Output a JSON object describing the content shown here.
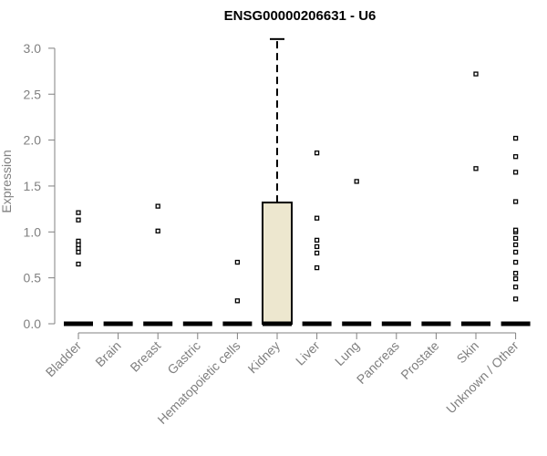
{
  "chart_data": {
    "type": "box",
    "title": "ENSG00000206631 - U6",
    "ylabel": "Expression",
    "xlabel": "",
    "ylim": [
      0,
      3.1
    ],
    "yticks": [
      "0.0",
      "0.5",
      "1.0",
      "1.5",
      "2.0",
      "2.5",
      "3.0"
    ],
    "categories": [
      "Bladder",
      "Brain",
      "Breast",
      "Gastric",
      "Hematopoietic cells",
      "Kidney",
      "Liver",
      "Lung",
      "Pancreas",
      "Prostate",
      "Skin",
      "Unknown / Other"
    ],
    "boxes": [
      {
        "category": "Bladder",
        "min": 0,
        "q1": 0,
        "median": 0,
        "q3": 0,
        "max": 0,
        "outliers": [
          0.65,
          0.78,
          0.82,
          0.86,
          0.9,
          1.13,
          1.21
        ]
      },
      {
        "category": "Brain",
        "min": 0,
        "q1": 0,
        "median": 0,
        "q3": 0,
        "max": 0,
        "outliers": []
      },
      {
        "category": "Breast",
        "min": 0,
        "q1": 0,
        "median": 0,
        "q3": 0,
        "max": 0,
        "outliers": [
          1.01,
          1.28
        ]
      },
      {
        "category": "Gastric",
        "min": 0,
        "q1": 0,
        "median": 0,
        "q3": 0,
        "max": 0,
        "outliers": []
      },
      {
        "category": "Hematopoietic cells",
        "min": 0,
        "q1": 0,
        "median": 0,
        "q3": 0,
        "max": 0,
        "outliers": [
          0.25,
          0.67
        ]
      },
      {
        "category": "Kidney",
        "min": 0,
        "q1": 0,
        "median": 0,
        "q3": 1.32,
        "max": 3.1,
        "outliers": []
      },
      {
        "category": "Liver",
        "min": 0,
        "q1": 0,
        "median": 0,
        "q3": 0,
        "max": 0,
        "outliers": [
          0.61,
          0.77,
          0.84,
          0.91,
          1.15,
          1.86
        ]
      },
      {
        "category": "Lung",
        "min": 0,
        "q1": 0,
        "median": 0,
        "q3": 0,
        "max": 0,
        "outliers": [
          1.55
        ]
      },
      {
        "category": "Pancreas",
        "min": 0,
        "q1": 0,
        "median": 0,
        "q3": 0,
        "max": 0,
        "outliers": []
      },
      {
        "category": "Prostate",
        "min": 0,
        "q1": 0,
        "median": 0,
        "q3": 0,
        "max": 0,
        "outliers": []
      },
      {
        "category": "Skin",
        "min": 0,
        "q1": 0,
        "median": 0,
        "q3": 0,
        "max": 0,
        "outliers": [
          1.69,
          2.72
        ]
      },
      {
        "category": "Unknown / Other",
        "min": 0,
        "q1": 0,
        "median": 0,
        "q3": 0,
        "max": 0,
        "outliers": [
          0.27,
          0.4,
          0.49,
          0.55,
          0.67,
          0.78,
          0.86,
          0.93,
          1.0,
          1.02,
          1.33,
          1.65,
          1.82,
          2.02
        ]
      }
    ],
    "grid": false,
    "legend": "none",
    "colors": {
      "box_fill": "#ede7cf",
      "box_stroke": "#000000",
      "axis": "#808080",
      "text": "#808080",
      "title": "#000000"
    }
  }
}
